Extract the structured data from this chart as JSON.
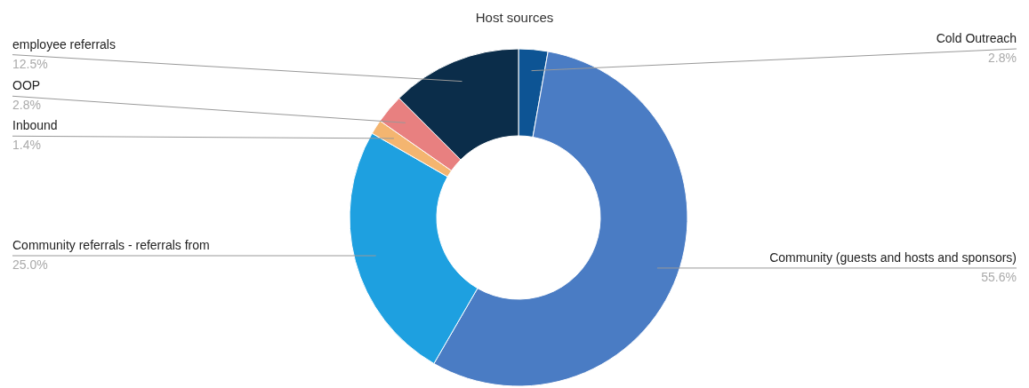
{
  "chart_data": {
    "type": "donut",
    "title": "Host sources",
    "categories": [
      "Cold Outreach",
      "Community (guests and hosts and sponsors)",
      "Community referrals - referrals from",
      "Inbound",
      "OOP",
      "employee referrals"
    ],
    "values": [
      2.8,
      55.6,
      25.0,
      1.4,
      2.8,
      12.5
    ],
    "colors": [
      "#0d5494",
      "#4a7cc4",
      "#1ea0e0",
      "#f4b570",
      "#e88080",
      "#0b2d4a"
    ],
    "value_labels": [
      "2.8%",
      "55.6%",
      "25.0%",
      "1.4%",
      "2.8%",
      "12.5%"
    ]
  }
}
